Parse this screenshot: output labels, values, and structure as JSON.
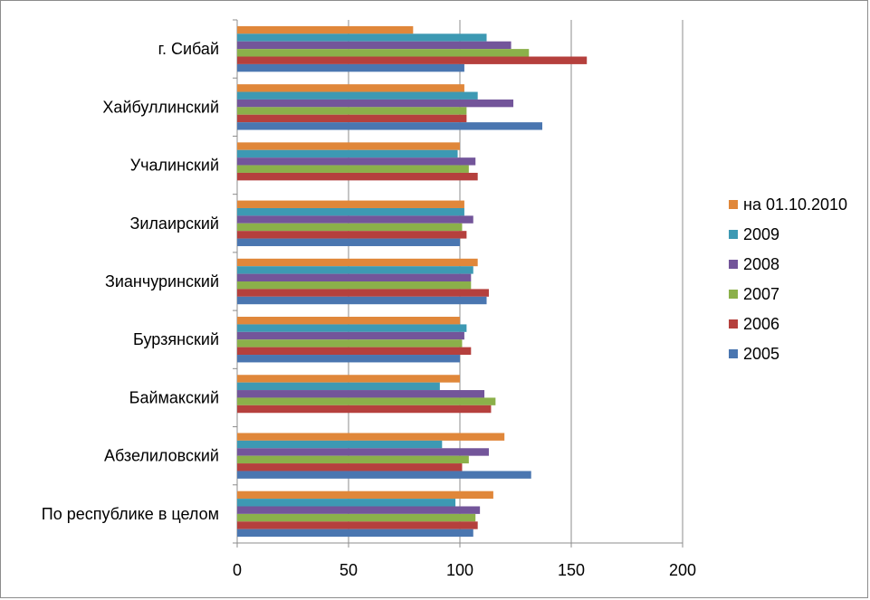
{
  "chart_data": {
    "type": "bar",
    "orientation": "horizontal",
    "title": "",
    "xlabel": "",
    "ylabel": "",
    "xlim": [
      0,
      200
    ],
    "xticks": [
      0,
      50,
      100,
      150,
      200
    ],
    "grid": true,
    "legend_position": "right",
    "categories": [
      "г. Сибай",
      "Хайбуллинский",
      "Учалинский",
      "Зилаирский",
      "Зианчуринский",
      "Бурзянский",
      "Баймакский",
      "Абзелиловский",
      "По республике в целом"
    ],
    "series": [
      {
        "name": "на 01.10.2010",
        "color": "#E0873A",
        "values": [
          79,
          102,
          100,
          102,
          108,
          100,
          100,
          120,
          115
        ]
      },
      {
        "name": "2009",
        "color": "#3D99B3",
        "values": [
          112,
          108,
          99,
          102,
          106,
          103,
          91,
          92,
          98
        ]
      },
      {
        "name": "2008",
        "color": "#73559A",
        "values": [
          123,
          124,
          107,
          106,
          105,
          102,
          111,
          113,
          109
        ]
      },
      {
        "name": "2007",
        "color": "#8BB04A",
        "values": [
          131,
          103,
          104,
          101,
          105,
          101,
          116,
          104,
          107
        ]
      },
      {
        "name": "2006",
        "color": "#B5403D",
        "values": [
          157,
          103,
          108,
          103,
          113,
          105,
          114,
          101,
          108
        ]
      },
      {
        "name": "2005",
        "color": "#4A76B0",
        "values": [
          102,
          137,
          0,
          100,
          112,
          100,
          0,
          132,
          106
        ]
      }
    ]
  }
}
